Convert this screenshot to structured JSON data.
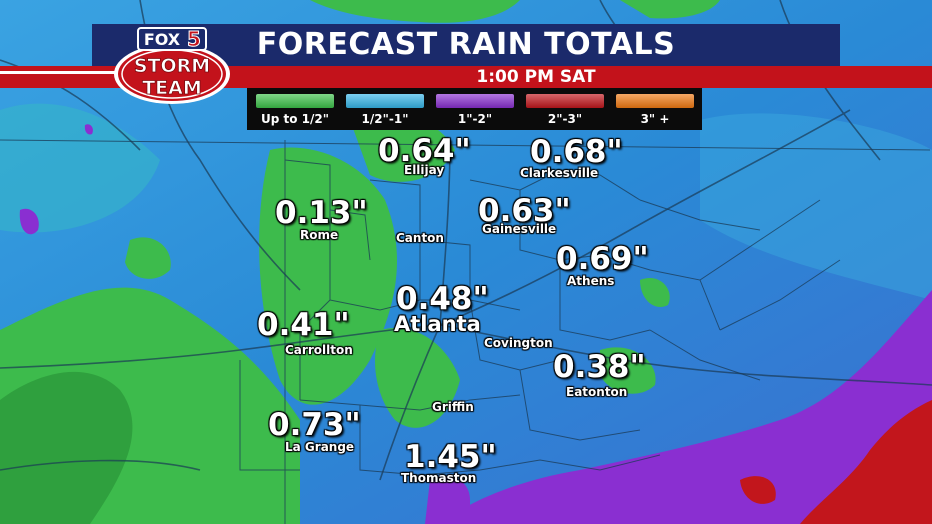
{
  "header": {
    "title": "FORECAST RAIN TOTALS",
    "time": "1:00 PM SAT"
  },
  "logo": {
    "line1": "FOX 5",
    "line2": "STORM",
    "line3": "TEAM"
  },
  "legend": [
    {
      "label": "Up to 1/2\"",
      "color": "#3dc24a"
    },
    {
      "label": "1/2\"-1\"",
      "color": "#36b6e8"
    },
    {
      "label": "1\"-2\"",
      "color": "#8a2fd1"
    },
    {
      "label": "2\"-3\"",
      "color": "#c2161c"
    },
    {
      "label": "3\" +",
      "color": "#f07a12"
    }
  ],
  "locations": [
    {
      "name": "Ellijay",
      "amount": "0.64\""
    },
    {
      "name": "Clarkesville",
      "amount": "0.68\""
    },
    {
      "name": "Rome",
      "amount": "0.13\""
    },
    {
      "name": "Gainesville",
      "amount": "0.63\""
    },
    {
      "name": "Canton",
      "amount": ""
    },
    {
      "name": "Athens",
      "amount": "0.69\""
    },
    {
      "name": "Atlanta",
      "amount": "0.48\""
    },
    {
      "name": "Carrollton",
      "amount": "0.41\""
    },
    {
      "name": "Covington",
      "amount": ""
    },
    {
      "name": "Eatonton",
      "amount": "0.38\""
    },
    {
      "name": "Griffin",
      "amount": ""
    },
    {
      "name": "La Grange",
      "amount": "0.73\""
    },
    {
      "name": "Thomaston",
      "amount": "1.45\""
    }
  ],
  "colors": {
    "banner": "#1b2a6b",
    "redbar": "#c3121b",
    "rain_light": "#3dc24a",
    "rain_moderate": "#2a8fd8",
    "rain_heavy": "#8a2fd1",
    "rain_very_heavy": "#c2161c"
  }
}
